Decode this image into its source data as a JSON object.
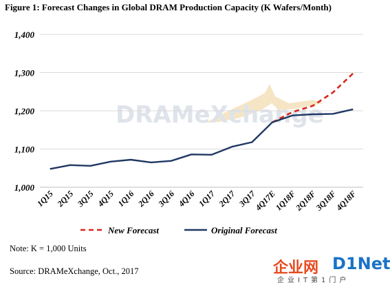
{
  "title": "Figure 1: Forecast Changes in Global DRAM Production Capacity (K Wafers/Month)",
  "watermark": "DRAMeXchange",
  "notes": {
    "note": "Note: K = 1,000 Units",
    "source": "Source: DRAMeXchange, Oct., 2017"
  },
  "corner_logo": {
    "main": "企业网",
    "net": "D1Net",
    "sub": "企业IT第1门户"
  },
  "colors": {
    "original": "#1f3864",
    "new": "#d9261c",
    "grid": "#d9d9d9",
    "watermark_text": "#dfe3ea",
    "watermark_accent": "#f3dfb7"
  },
  "chart_data": {
    "type": "line",
    "title": "Figure 1: Forecast Changes in Global DRAM Production Capacity (K Wafers/Month)",
    "xlabel": "",
    "ylabel": "",
    "ylim": [
      1000,
      1400
    ],
    "yticks": [
      1000,
      1100,
      1200,
      1300,
      1400
    ],
    "ytick_labels": [
      "1,000",
      "1,100",
      "1,200",
      "1,300",
      "1,400"
    ],
    "grid": true,
    "legend_position": "bottom",
    "categories": [
      "1Q15",
      "2Q15",
      "3Q15",
      "4Q15",
      "1Q16",
      "2Q16",
      "3Q16",
      "4Q16",
      "1Q17",
      "2Q17",
      "3Q17",
      "4Q17E",
      "1Q18F",
      "2Q18F",
      "3Q18F",
      "4Q18F"
    ],
    "series": [
      {
        "name": "New Forecast",
        "style": "dashed",
        "color": "#d9261c",
        "values": [
          null,
          null,
          null,
          null,
          null,
          null,
          null,
          null,
          null,
          null,
          null,
          1170,
          1197,
          1213,
          1248,
          1298
        ]
      },
      {
        "name": "Original Forecast",
        "style": "solid",
        "color": "#1f3864",
        "values": [
          1048,
          1058,
          1056,
          1067,
          1072,
          1065,
          1069,
          1086,
          1085,
          1106,
          1118,
          1170,
          1188,
          1191,
          1192,
          1204
        ]
      }
    ]
  }
}
